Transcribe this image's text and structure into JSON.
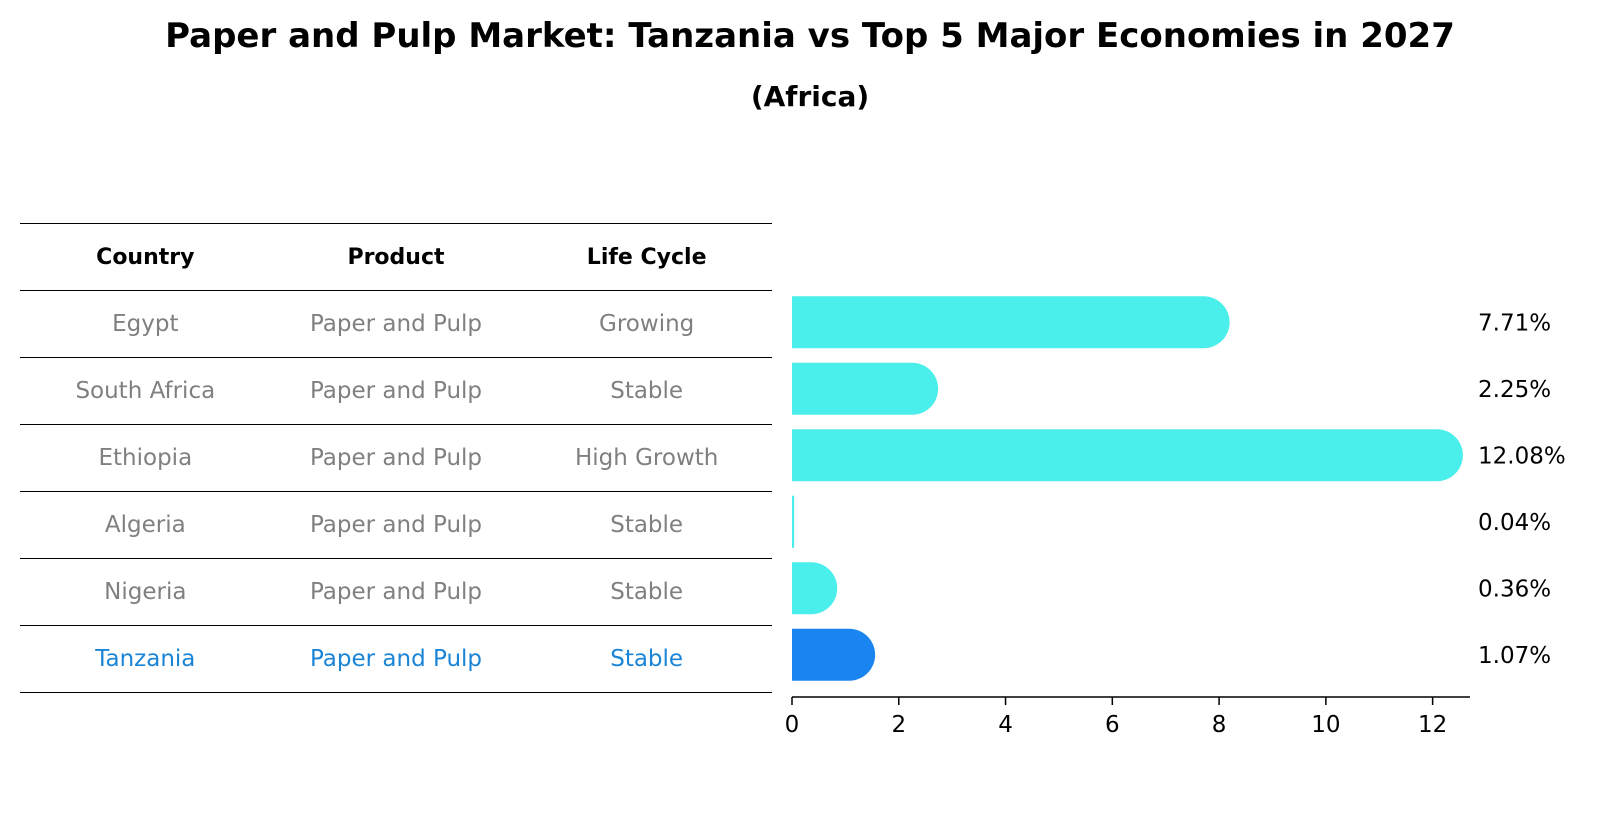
{
  "chart_data": {
    "type": "bar",
    "orientation": "horizontal",
    "title": "Paper and Pulp Market: Tanzania vs Top 5 Major Economies in 2027",
    "subtitle": "(Africa)",
    "columns": [
      "Country",
      "Product",
      "Life Cycle"
    ],
    "rows": [
      {
        "country": "Egypt",
        "product": "Paper and Pulp",
        "life_cycle": "Growing",
        "value": 7.71,
        "label": "7.71%"
      },
      {
        "country": "South Africa",
        "product": "Paper and Pulp",
        "life_cycle": "Stable",
        "value": 2.25,
        "label": "2.25%"
      },
      {
        "country": "Ethiopia",
        "product": "Paper and Pulp",
        "life_cycle": "High Growth",
        "value": 12.08,
        "label": "12.08%"
      },
      {
        "country": "Algeria",
        "product": "Paper and Pulp",
        "life_cycle": "Stable",
        "value": 0.04,
        "label": "0.04%"
      },
      {
        "country": "Nigeria",
        "product": "Paper and Pulp",
        "life_cycle": "Stable",
        "value": 0.36,
        "label": "0.36%"
      },
      {
        "country": "Tanzania",
        "product": "Paper and Pulp",
        "life_cycle": "Stable",
        "value": 1.07,
        "label": "1.07%",
        "highlight": true
      }
    ],
    "xticks": [
      0,
      2,
      4,
      6,
      8,
      10,
      12
    ],
    "xlim": [
      0,
      12.7
    ],
    "colors": {
      "bar": "#4aeeea",
      "highlight_bar": "#1a85f0",
      "highlight_text": "#1a85d6",
      "row_text": "#808080"
    }
  }
}
